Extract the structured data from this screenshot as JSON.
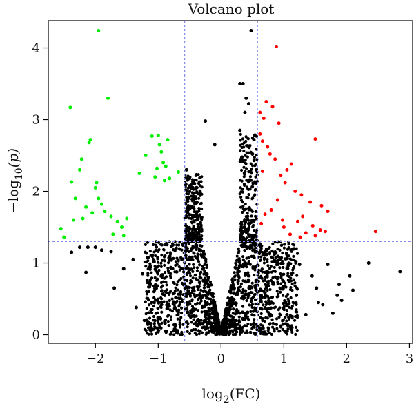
{
  "chart_data": {
    "type": "scatter",
    "title": "Volcano plot",
    "xlabel": {
      "prefix": "log",
      "sub": "2",
      "suffix": "(FC)"
    },
    "ylabel": {
      "prefix": "−log",
      "sub": "10",
      "suffix": "(p)"
    },
    "xlim": [
      -2.75,
      3.05
    ],
    "ylim": [
      -0.12,
      4.38
    ],
    "xticks": [
      -2,
      -1,
      0,
      1,
      2,
      3
    ],
    "xtick_labels": [
      "−2",
      "−1",
      "0",
      "1",
      "2",
      "3"
    ],
    "yticks": [
      0,
      1,
      2,
      3,
      4
    ],
    "ytick_labels": [
      "0",
      "1",
      "2",
      "3",
      "4"
    ],
    "thresholds": {
      "fc": [
        -0.58,
        0.58
      ],
      "p": 1.3
    },
    "grid": false,
    "legend": "none",
    "colors": {
      "up": "#ff0000",
      "down": "#00ee00",
      "ns": "#000000",
      "threshold": "#8a8ae8"
    },
    "series": [
      {
        "group": "down",
        "points": [
          [
            -1.95,
            4.24
          ],
          [
            -1.8,
            3.3
          ],
          [
            -2.4,
            3.17
          ],
          [
            -2.08,
            2.72
          ],
          [
            -2.1,
            2.68
          ],
          [
            -2.22,
            2.45
          ],
          [
            -2.25,
            2.3
          ],
          [
            -2.38,
            2.13
          ],
          [
            -1.98,
            2.12
          ],
          [
            -2.0,
            2.05
          ],
          [
            -1.95,
            1.9
          ],
          [
            -1.9,
            1.82
          ],
          [
            -2.15,
            1.78
          ],
          [
            -2.32,
            1.9
          ],
          [
            -1.85,
            1.72
          ],
          [
            -2.05,
            1.7
          ],
          [
            -2.2,
            1.62
          ],
          [
            -2.35,
            1.6
          ],
          [
            -1.75,
            1.65
          ],
          [
            -1.65,
            1.58
          ],
          [
            -2.55,
            1.48
          ],
          [
            -2.5,
            1.36
          ],
          [
            -1.72,
            1.4
          ],
          [
            -1.58,
            1.5
          ],
          [
            -1.55,
            1.38
          ],
          [
            -1.5,
            1.62
          ],
          [
            -1.0,
            2.78
          ],
          [
            -1.1,
            2.77
          ],
          [
            -0.85,
            2.72
          ],
          [
            -0.98,
            2.65
          ],
          [
            -1.2,
            2.5
          ],
          [
            -0.95,
            2.55
          ],
          [
            -0.92,
            2.4
          ],
          [
            -0.88,
            2.35
          ],
          [
            -1.02,
            2.32
          ],
          [
            -1.3,
            2.25
          ],
          [
            -1.05,
            2.2
          ],
          [
            -0.82,
            2.18
          ],
          [
            -0.9,
            2.15
          ],
          [
            -0.68,
            2.27
          ]
        ]
      },
      {
        "group": "up",
        "points": [
          [
            0.88,
            4.02
          ],
          [
            0.72,
            3.25
          ],
          [
            0.62,
            3.1
          ],
          [
            0.68,
            3.02
          ],
          [
            0.82,
            3.18
          ],
          [
            0.92,
            2.95
          ],
          [
            1.5,
            2.73
          ],
          [
            0.62,
            2.8
          ],
          [
            0.66,
            2.7
          ],
          [
            0.74,
            2.62
          ],
          [
            0.78,
            2.52
          ],
          [
            0.86,
            2.45
          ],
          [
            1.12,
            2.38
          ],
          [
            1.05,
            2.3
          ],
          [
            0.95,
            2.22
          ],
          [
            0.66,
            2.28
          ],
          [
            1.02,
            2.12
          ],
          [
            1.18,
            2.0
          ],
          [
            1.28,
            1.95
          ],
          [
            1.42,
            1.85
          ],
          [
            1.6,
            1.8
          ],
          [
            1.7,
            1.72
          ],
          [
            1.3,
            1.65
          ],
          [
            1.22,
            1.58
          ],
          [
            1.46,
            1.52
          ],
          [
            1.58,
            1.46
          ],
          [
            1.66,
            1.44
          ],
          [
            2.46,
            1.44
          ],
          [
            1.35,
            1.42
          ],
          [
            1.1,
            1.4
          ],
          [
            1.26,
            1.36
          ],
          [
            1.5,
            1.38
          ],
          [
            0.9,
            1.88
          ],
          [
            0.8,
            1.74
          ],
          [
            0.7,
            1.68
          ],
          [
            0.64,
            1.55
          ],
          [
            0.98,
            1.6
          ],
          [
            1.0,
            1.5
          ]
        ]
      },
      {
        "group": "ns",
        "points": [
          [
            0.48,
            4.24
          ],
          [
            0.3,
            3.5
          ],
          [
            0.35,
            3.5
          ],
          [
            0.4,
            3.3
          ],
          [
            0.38,
            3.1
          ],
          [
            0.44,
            3.22
          ],
          [
            -0.25,
            2.98
          ],
          [
            0.3,
            2.85
          ],
          [
            -0.1,
            2.65
          ],
          [
            -0.55,
            2.3
          ],
          [
            -0.52,
            2.2
          ],
          [
            -0.45,
            2.05
          ],
          [
            0.5,
            2.52
          ],
          [
            0.35,
            2.42
          ],
          [
            -2.25,
            1.22
          ],
          [
            -2.38,
            1.15
          ],
          [
            -2.15,
            0.87
          ],
          [
            -2.12,
            1.22
          ],
          [
            -2.0,
            1.22
          ],
          [
            -1.9,
            1.18
          ],
          [
            -1.75,
            1.16
          ],
          [
            -1.7,
            0.65
          ],
          [
            -1.55,
            0.92
          ],
          [
            -1.4,
            1.05
          ],
          [
            -1.35,
            0.38
          ],
          [
            -1.25,
            0.85
          ],
          [
            -1.22,
            0.2
          ],
          [
            -1.05,
            0.65
          ],
          [
            -0.95,
            0.45
          ],
          [
            1.45,
            0.82
          ],
          [
            1.52,
            0.65
          ],
          [
            1.55,
            0.45
          ],
          [
            1.62,
            0.42
          ],
          [
            1.7,
            0.98
          ],
          [
            1.85,
            0.55
          ],
          [
            1.92,
            0.48
          ],
          [
            2.05,
            0.82
          ],
          [
            2.1,
            0.62
          ],
          [
            2.35,
            1.0
          ],
          [
            2.85,
            0.88
          ],
          [
            1.2,
            0.55
          ],
          [
            1.25,
            0.98
          ],
          [
            1.35,
            0.28
          ],
          [
            1.05,
            0.28
          ],
          [
            0.95,
            0.12
          ],
          [
            1.88,
            0.7
          ],
          [
            1.78,
            0.3
          ]
        ]
      }
    ]
  }
}
